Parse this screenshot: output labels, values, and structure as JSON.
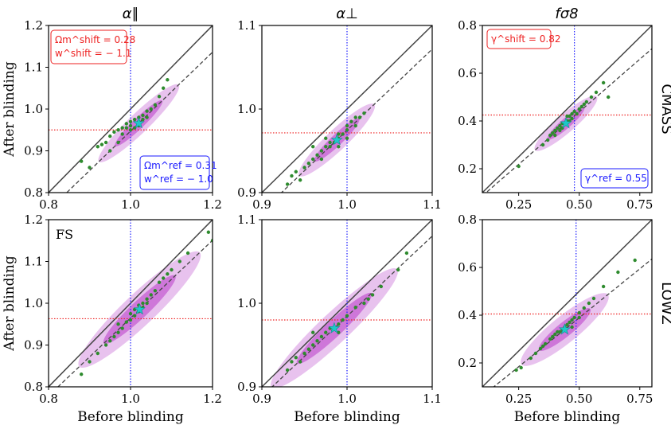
{
  "chart_data": [
    {
      "id": "cmass_apar",
      "type": "scatter",
      "title": "α∥",
      "row": "CMASS",
      "xlim": [
        0.8,
        1.2
      ],
      "ylim": [
        0.8,
        1.2
      ],
      "xticks": [
        "0.8",
        "1.0",
        "1.2"
      ],
      "yticks": [
        "0.8",
        "0.9",
        "1.0",
        "1.1",
        "1.2"
      ],
      "xlabel": "",
      "ylabel": "After blinding",
      "ref_x": 1.0,
      "shift_y": 0.95,
      "slope": 0.945,
      "center": [
        1.02,
        0.966
      ],
      "ellipse": {
        "length": 0.2,
        "width": 0.022
      },
      "points": [
        [
          0.88,
          0.875
        ],
        [
          0.9,
          0.86
        ],
        [
          0.92,
          0.91
        ],
        [
          0.93,
          0.915
        ],
        [
          0.94,
          0.92
        ],
        [
          0.95,
          0.935
        ],
        [
          0.96,
          0.945
        ],
        [
          0.97,
          0.92
        ],
        [
          0.97,
          0.95
        ],
        [
          0.98,
          0.94
        ],
        [
          0.98,
          0.955
        ],
        [
          0.99,
          0.955
        ],
        [
          0.99,
          0.965
        ],
        [
          1.0,
          0.95
        ],
        [
          1.0,
          0.96
        ],
        [
          1.0,
          0.97
        ],
        [
          1.01,
          0.955
        ],
        [
          1.01,
          0.975
        ],
        [
          1.02,
          0.96
        ],
        [
          1.02,
          0.97
        ],
        [
          1.02,
          0.98
        ],
        [
          1.03,
          0.975
        ],
        [
          1.03,
          0.985
        ],
        [
          1.04,
          0.98
        ],
        [
          1.04,
          0.995
        ],
        [
          1.05,
          1.0
        ],
        [
          1.06,
          1.01
        ],
        [
          1.07,
          1.03
        ],
        [
          1.08,
          1.05
        ],
        [
          1.09,
          1.07
        ],
        [
          0.95,
          0.9
        ]
      ],
      "legend": "Ω_m^shift = 0.28, w^shift = −1.1 ; Ω_m^ref = 0.31, w^ref = −1.0"
    },
    {
      "id": "cmass_aperp",
      "type": "scatter",
      "title": "α⊥",
      "row": "CMASS",
      "xlim": [
        0.9,
        1.1
      ],
      "ylim": [
        0.9,
        1.1
      ],
      "xticks": [
        "0.9",
        "1.0",
        "1.1"
      ],
      "yticks": [
        "0.9",
        "1.0",
        "1.1"
      ],
      "xlabel": "",
      "ylabel": "",
      "ref_x": 1.0,
      "shift_y": 0.9715,
      "slope": 0.97,
      "center": [
        0.988,
        0.963
      ],
      "ellipse": {
        "length": 0.09,
        "width": 0.011
      },
      "points": [
        [
          0.93,
          0.91
        ],
        [
          0.935,
          0.92
        ],
        [
          0.94,
          0.925
        ],
        [
          0.945,
          0.915
        ],
        [
          0.95,
          0.93
        ],
        [
          0.955,
          0.935
        ],
        [
          0.96,
          0.94
        ],
        [
          0.965,
          0.945
        ],
        [
          0.97,
          0.94
        ],
        [
          0.97,
          0.95
        ],
        [
          0.975,
          0.955
        ],
        [
          0.98,
          0.955
        ],
        [
          0.98,
          0.96
        ],
        [
          0.985,
          0.96
        ],
        [
          0.99,
          0.965
        ],
        [
          0.99,
          0.97
        ],
        [
          0.995,
          0.97
        ],
        [
          1.0,
          0.975
        ],
        [
          1.0,
          0.98
        ],
        [
          1.005,
          0.985
        ],
        [
          1.01,
          0.98
        ],
        [
          1.01,
          0.99
        ],
        [
          1.015,
          0.99
        ],
        [
          1.02,
          0.995
        ],
        [
          0.96,
          0.955
        ],
        [
          0.975,
          0.965
        ],
        [
          0.99,
          0.955
        ],
        [
          1.0,
          0.965
        ]
      ],
      "legend": ""
    },
    {
      "id": "cmass_fs8",
      "type": "scatter",
      "title": "fσ8",
      "row": "CMASS",
      "xlim": [
        0.1,
        0.8
      ],
      "ylim": [
        0.1,
        0.8
      ],
      "xticks": [
        "0.25",
        "0.50",
        "0.75"
      ],
      "yticks": [
        "0.2",
        "0.4",
        "0.6",
        "0.8"
      ],
      "xlabel": "",
      "ylabel": "",
      "ref_x": 0.48,
      "shift_y": 0.425,
      "slope": 0.88,
      "center": [
        0.445,
        0.39
      ],
      "ellipse": {
        "length": 0.25,
        "width": 0.034
      },
      "points": [
        [
          0.25,
          0.21
        ],
        [
          0.35,
          0.3
        ],
        [
          0.37,
          0.32
        ],
        [
          0.38,
          0.34
        ],
        [
          0.39,
          0.35
        ],
        [
          0.4,
          0.34
        ],
        [
          0.4,
          0.36
        ],
        [
          0.41,
          0.37
        ],
        [
          0.42,
          0.36
        ],
        [
          0.42,
          0.38
        ],
        [
          0.43,
          0.37
        ],
        [
          0.43,
          0.39
        ],
        [
          0.44,
          0.39
        ],
        [
          0.45,
          0.4
        ],
        [
          0.45,
          0.42
        ],
        [
          0.46,
          0.4
        ],
        [
          0.46,
          0.42
        ],
        [
          0.47,
          0.41
        ],
        [
          0.47,
          0.43
        ],
        [
          0.48,
          0.44
        ],
        [
          0.49,
          0.43
        ],
        [
          0.5,
          0.45
        ],
        [
          0.51,
          0.46
        ],
        [
          0.52,
          0.47
        ],
        [
          0.53,
          0.48
        ],
        [
          0.55,
          0.5
        ],
        [
          0.57,
          0.52
        ],
        [
          0.6,
          0.56
        ],
        [
          0.62,
          0.5
        ]
      ],
      "legend": "γ^shift = 0.82 ; γ^ref = 0.55"
    },
    {
      "id": "lowz_apar",
      "type": "scatter",
      "title": "",
      "row": "LOWZ",
      "xlim": [
        0.8,
        1.2
      ],
      "ylim": [
        0.8,
        1.2
      ],
      "xticks": [
        "0.8",
        "1.0",
        "1.2"
      ],
      "yticks": [
        "0.8",
        "0.9",
        "1.0",
        "1.1",
        "1.2"
      ],
      "xlabel": "Before blinding",
      "ylabel": "After blinding",
      "ref_x": 1.0,
      "shift_y": 0.963,
      "slope": 0.93,
      "center": [
        1.022,
        0.985
      ],
      "ellipse": {
        "length": 0.3,
        "width": 0.035
      },
      "points": [
        [
          0.88,
          0.83
        ],
        [
          0.9,
          0.86
        ],
        [
          0.92,
          0.88
        ],
        [
          0.94,
          0.9
        ],
        [
          0.95,
          0.91
        ],
        [
          0.96,
          0.92
        ],
        [
          0.97,
          0.93
        ],
        [
          0.98,
          0.94
        ],
        [
          0.99,
          0.955
        ],
        [
          1.0,
          0.96
        ],
        [
          1.0,
          0.975
        ],
        [
          1.01,
          0.97
        ],
        [
          1.01,
          0.985
        ],
        [
          1.02,
          0.98
        ],
        [
          1.02,
          0.995
        ],
        [
          1.03,
          0.99
        ],
        [
          1.04,
          1.0
        ],
        [
          1.04,
          1.01
        ],
        [
          1.05,
          1.02
        ],
        [
          1.06,
          1.03
        ],
        [
          1.07,
          1.05
        ],
        [
          1.08,
          1.06
        ],
        [
          1.09,
          1.07
        ],
        [
          1.1,
          1.08
        ],
        [
          1.12,
          1.1
        ],
        [
          1.14,
          1.12
        ],
        [
          1.19,
          1.17
        ],
        [
          1.2,
          1.15
        ],
        [
          0.97,
          0.95
        ],
        [
          1.03,
          1.0
        ]
      ],
      "legend": ""
    },
    {
      "id": "lowz_aperp",
      "type": "scatter",
      "title": "",
      "row": "LOWZ",
      "xlim": [
        0.9,
        1.1
      ],
      "ylim": [
        0.9,
        1.1
      ],
      "xticks": [
        "0.9",
        "1.0",
        "1.1"
      ],
      "yticks": [
        "0.9",
        "1.0",
        "1.1"
      ],
      "xlabel": "Before blinding",
      "ylabel": "",
      "ref_x": 1.0,
      "shift_y": 0.98,
      "slope": 0.96,
      "center": [
        0.985,
        0.97
      ],
      "ellipse": {
        "length": 0.15,
        "width": 0.016
      },
      "points": [
        [
          0.93,
          0.92
        ],
        [
          0.935,
          0.93
        ],
        [
          0.94,
          0.935
        ],
        [
          0.945,
          0.93
        ],
        [
          0.95,
          0.94
        ],
        [
          0.955,
          0.945
        ],
        [
          0.96,
          0.95
        ],
        [
          0.965,
          0.955
        ],
        [
          0.97,
          0.96
        ],
        [
          0.975,
          0.965
        ],
        [
          0.98,
          0.97
        ],
        [
          0.985,
          0.97
        ],
        [
          0.99,
          0.975
        ],
        [
          0.995,
          0.98
        ],
        [
          1.0,
          0.985
        ],
        [
          1.01,
          0.995
        ],
        [
          1.02,
          1.0
        ],
        [
          1.025,
          1.005
        ],
        [
          1.03,
          1.01
        ],
        [
          1.04,
          1.02
        ],
        [
          1.06,
          1.04
        ],
        [
          1.07,
          1.06
        ],
        [
          0.96,
          0.965
        ],
        [
          0.99,
          0.965
        ]
      ],
      "legend": ""
    },
    {
      "id": "lowz_fs8",
      "type": "scatter",
      "title": "",
      "row": "LOWZ",
      "xlim": [
        0.1,
        0.8
      ],
      "ylim": [
        0.1,
        0.8
      ],
      "xticks": [
        "0.25",
        "0.50",
        "0.75"
      ],
      "yticks": [
        "0.2",
        "0.4",
        "0.6",
        "0.8"
      ],
      "xlabel": "Before blinding",
      "ylabel": "",
      "ref_x": 0.487,
      "shift_y": 0.405,
      "slope": 0.82,
      "center": [
        0.44,
        0.34
      ],
      "ellipse": {
        "length": 0.34,
        "width": 0.05
      },
      "points": [
        [
          0.24,
          0.17
        ],
        [
          0.26,
          0.18
        ],
        [
          0.3,
          0.22
        ],
        [
          0.32,
          0.24
        ],
        [
          0.34,
          0.26
        ],
        [
          0.35,
          0.27
        ],
        [
          0.36,
          0.28
        ],
        [
          0.38,
          0.3
        ],
        [
          0.39,
          0.31
        ],
        [
          0.4,
          0.32
        ],
        [
          0.41,
          0.33
        ],
        [
          0.42,
          0.33
        ],
        [
          0.43,
          0.34
        ],
        [
          0.44,
          0.35
        ],
        [
          0.45,
          0.36
        ],
        [
          0.46,
          0.37
        ],
        [
          0.47,
          0.38
        ],
        [
          0.48,
          0.39
        ],
        [
          0.5,
          0.41
        ],
        [
          0.52,
          0.43
        ],
        [
          0.54,
          0.45
        ],
        [
          0.56,
          0.47
        ],
        [
          0.6,
          0.52
        ],
        [
          0.66,
          0.58
        ],
        [
          0.73,
          0.63
        ],
        [
          0.47,
          0.35
        ],
        [
          0.5,
          0.39
        ]
      ],
      "legend": ""
    }
  ],
  "labels": {
    "col_titles": [
      "α∥",
      "α⊥",
      "fσ8"
    ],
    "row_labels": [
      "CMASS",
      "LOWZ"
    ],
    "ylabel": "After blinding",
    "xlabel": "Before blinding",
    "fs_label": "FS",
    "shift_box_apar": [
      "Ωm^shift = 0.28",
      "w^shift = − 1.1"
    ],
    "ref_box_apar": [
      "Ωm^ref = 0.31",
      "w^ref = − 1.0"
    ],
    "shift_box_fs8": "γ^shift = 0.82",
    "ref_box_fs8": "γ^ref = 0.55"
  },
  "colors": {
    "identity": "#444444",
    "fit": "#444444",
    "ref": "#1a1aff",
    "shift": "#ee2222",
    "ellipse_outer": "#d58fe0",
    "ellipse_inner": "#b83bc8",
    "points": "#2e8b2e",
    "star": "#1ec8c8"
  }
}
